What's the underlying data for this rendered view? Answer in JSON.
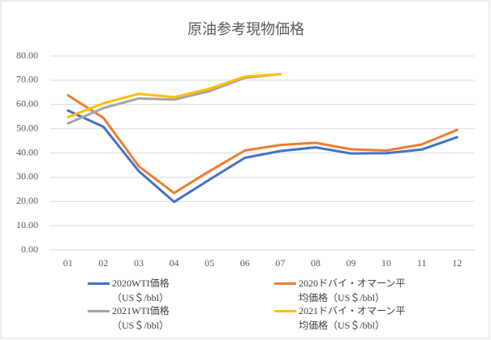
{
  "chart_data": {
    "type": "line",
    "title": "原油参考現物価格",
    "categories": [
      "01",
      "02",
      "03",
      "04",
      "05",
      "06",
      "07",
      "08",
      "09",
      "10",
      "11",
      "12"
    ],
    "series": [
      {
        "name": "2020WTI価格　（US＄/bbl）",
        "color": "#4472c4",
        "values": [
          57.5,
          50.8,
          32.5,
          19.8,
          29.0,
          38.0,
          40.8,
          42.3,
          39.8,
          39.9,
          41.4,
          46.5
        ]
      },
      {
        "name": "2020ドバイ・オマーン平均価格（US＄/bbl）",
        "color": "#ed7d31",
        "values": [
          63.8,
          54.5,
          34.5,
          23.5,
          32.5,
          41.0,
          43.3,
          44.2,
          41.5,
          41.0,
          43.5,
          49.5
        ]
      },
      {
        "name": "2021WTI価格　（US＄/bbl）",
        "color": "#a5a5a5",
        "values": [
          52.2,
          58.5,
          62.5,
          62.0,
          65.5,
          71.0,
          72.5,
          null,
          null,
          null,
          null,
          null
        ]
      },
      {
        "name": "2021ドバイ・オマーン平均価格（US＄/bbl）",
        "color": "#ffc000",
        "values": [
          54.8,
          60.5,
          64.4,
          63.0,
          66.5,
          71.5,
          72.5,
          null,
          null,
          null,
          null,
          null
        ]
      }
    ],
    "ylim": [
      0,
      80
    ],
    "yticks": [
      {
        "value": 0,
        "label": "0.00"
      },
      {
        "value": 10,
        "label": "10.00"
      },
      {
        "value": 20,
        "label": "20.00"
      },
      {
        "value": 30,
        "label": "30.00"
      },
      {
        "value": 40,
        "label": "40.00"
      },
      {
        "value": 50,
        "label": "50.00"
      },
      {
        "value": 60,
        "label": "60.00"
      },
      {
        "value": 70,
        "label": "70.00"
      },
      {
        "value": 80,
        "label": "80.00"
      }
    ],
    "grid": true,
    "legend": "bottom"
  }
}
